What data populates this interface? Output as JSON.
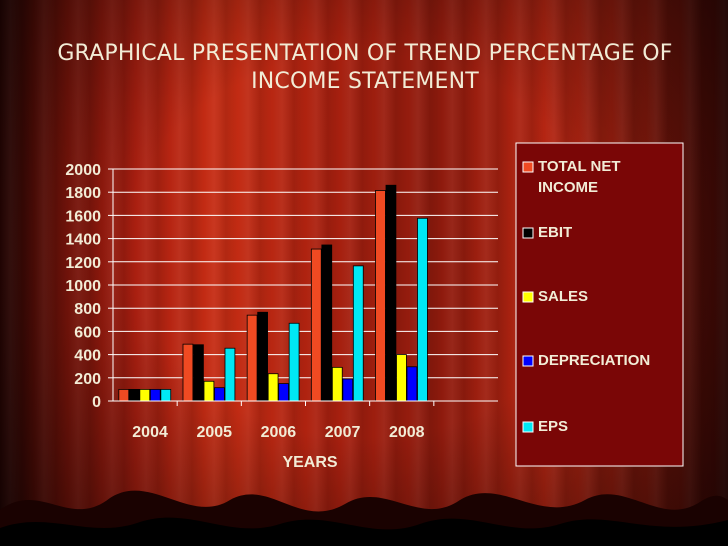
{
  "slide": {
    "title": "GRAPHICAL PRESENTATION OF TREND PERCENTAGE OF INCOME STATEMENT"
  },
  "chart_data": {
    "type": "bar",
    "title": "",
    "xlabel": "YEARS",
    "ylabel": "",
    "categories": [
      "2004",
      "2005",
      "2006",
      "2007",
      "2008"
    ],
    "ylim": [
      0,
      2000
    ],
    "yticks": [
      0,
      200,
      400,
      600,
      800,
      1000,
      1200,
      1400,
      1600,
      1800,
      2000
    ],
    "grid": true,
    "legend": "right",
    "series": [
      {
        "name": "TOTAL NET INCOME",
        "color": "#f04a22",
        "values": [
          100,
          490,
          740,
          1310,
          1815
        ]
      },
      {
        "name": "EBIT",
        "color": "#000000",
        "values": [
          100,
          485,
          765,
          1345,
          1860
        ]
      },
      {
        "name": "SALES",
        "color": "#ffff00",
        "values": [
          100,
          170,
          235,
          290,
          400
        ]
      },
      {
        "name": "DEPRECIATION",
        "color": "#0000ff",
        "values": [
          100,
          115,
          150,
          190,
          295
        ]
      },
      {
        "name": "EPS",
        "color": "#00e8f4",
        "values": [
          100,
          455,
          670,
          1165,
          1575
        ]
      }
    ]
  }
}
